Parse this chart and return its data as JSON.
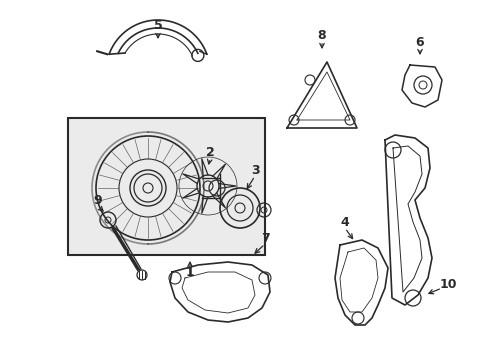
{
  "background_color": "#ffffff",
  "line_color": "#2a2a2a",
  "box_fill": "#ebebeb",
  "figsize": [
    4.89,
    3.6
  ],
  "dpi": 100
}
